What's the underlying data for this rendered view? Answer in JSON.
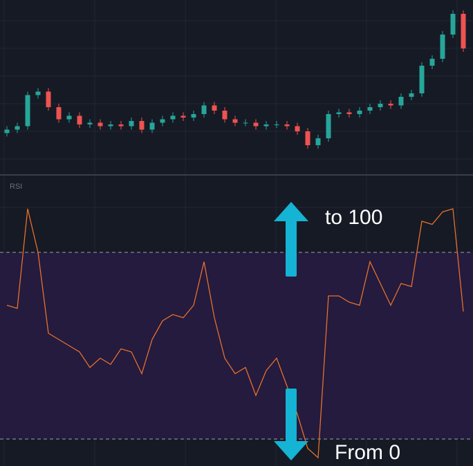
{
  "chart_data": [
    {
      "type": "candlestick",
      "ylim": [
        0,
        100
      ],
      "up_color": "#26a69a",
      "down_color": "#ef5350",
      "open": [
        23,
        25,
        27,
        45,
        47,
        38,
        31,
        33,
        28,
        29,
        27,
        28,
        27,
        30,
        25,
        29,
        31,
        33,
        32,
        34,
        39,
        36,
        31,
        29,
        29,
        27,
        28,
        28,
        27,
        24,
        16,
        20,
        34,
        35,
        34,
        36,
        38,
        40,
        39,
        44,
        46,
        62,
        66,
        80,
        92
      ],
      "high": [
        27,
        29,
        47,
        49,
        49,
        40,
        35,
        35,
        31,
        31,
        30,
        30,
        32,
        32,
        31,
        33,
        35,
        35,
        36,
        41,
        41,
        38,
        33,
        31,
        31,
        30,
        30,
        30,
        29,
        26,
        22,
        36,
        37,
        37,
        38,
        40,
        42,
        42,
        46,
        48,
        64,
        68,
        82,
        94,
        94
      ],
      "low": [
        21,
        23,
        25,
        43,
        36,
        29,
        29,
        26,
        26,
        25,
        25,
        25,
        25,
        23,
        23,
        27,
        29,
        30,
        30,
        32,
        34,
        29,
        27,
        27,
        25,
        25,
        26,
        25,
        22,
        14,
        14,
        18,
        32,
        32,
        32,
        34,
        36,
        37,
        37,
        42,
        44,
        60,
        64,
        78,
        70
      ],
      "close": [
        25,
        27,
        45,
        47,
        38,
        31,
        33,
        28,
        29,
        27,
        28,
        27,
        30,
        25,
        29,
        31,
        33,
        32,
        34,
        39,
        36,
        31,
        29,
        29,
        27,
        28,
        28,
        27,
        24,
        16,
        20,
        34,
        35,
        34,
        36,
        38,
        40,
        39,
        44,
        46,
        62,
        66,
        80,
        92,
        72
      ]
    },
    {
      "type": "line",
      "title": "RSI",
      "ylim": [
        0,
        100
      ],
      "color": "#e8702a",
      "values": [
        63,
        62,
        94,
        80,
        54,
        52,
        50,
        48,
        43,
        46,
        44,
        49,
        48,
        41,
        52,
        58,
        60,
        59,
        63,
        77,
        59,
        46,
        41,
        43,
        34,
        42,
        46,
        37,
        28,
        17,
        14,
        66,
        66,
        64,
        63,
        77,
        70,
        63,
        70,
        69,
        90,
        89,
        93,
        94,
        61
      ],
      "bands": [
        20,
        80
      ],
      "band_color": "#241b3f",
      "annotations": [
        "to 100",
        "From 0"
      ]
    }
  ]
}
